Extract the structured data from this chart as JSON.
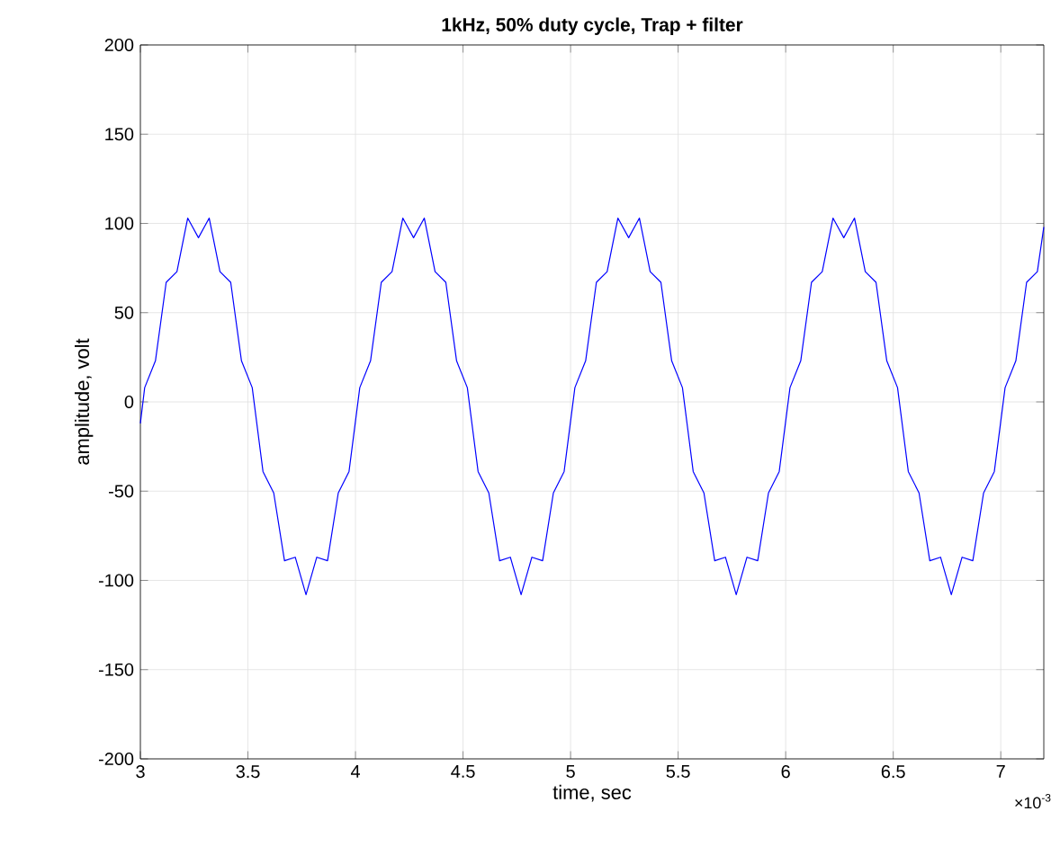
{
  "chart_data": {
    "type": "line",
    "title": "1kHz, 50% duty cycle, Trap + filter",
    "xlabel": "time, sec",
    "ylabel": "amplitude, volt",
    "annotations": [
      "×10$^{-3}$"
    ],
    "x": [
      3.0,
      3.02,
      3.07,
      3.12,
      3.17,
      3.22,
      3.27,
      3.32,
      3.37,
      3.42,
      3.47,
      3.52,
      3.57,
      3.62,
      3.67,
      3.72,
      3.77,
      3.82,
      3.87,
      3.92,
      3.97,
      4.02,
      4.07,
      4.12,
      4.17,
      4.22,
      4.27,
      4.32,
      4.37,
      4.42,
      4.47,
      4.52,
      4.57,
      4.62,
      4.67,
      4.72,
      4.77,
      4.82,
      4.87,
      4.92,
      4.97,
      5.02,
      5.07,
      5.12,
      5.17,
      5.22,
      5.27,
      5.32,
      5.37,
      5.42,
      5.47,
      5.52,
      5.57,
      5.62,
      5.67,
      5.72,
      5.77,
      5.82,
      5.87,
      5.92,
      5.97,
      6.02,
      6.07,
      6.12,
      6.17,
      6.22,
      6.27,
      6.32,
      6.37,
      6.42,
      6.47,
      6.52,
      6.57,
      6.62,
      6.67,
      6.72,
      6.77,
      6.82,
      6.87,
      6.92,
      6.97,
      7.02,
      7.07,
      7.12,
      7.17,
      7.2
    ],
    "values": [
      -12,
      8,
      23,
      67,
      73,
      103,
      92,
      103,
      73,
      67,
      23,
      8,
      -39,
      -51,
      -89,
      -87,
      -108,
      -87,
      -89,
      -51,
      -39,
      8,
      23,
      67,
      73,
      103,
      92,
      103,
      73,
      67,
      23,
      8,
      -39,
      -51,
      -89,
      -87,
      -108,
      -87,
      -89,
      -51,
      -39,
      8,
      23,
      67,
      73,
      103,
      92,
      103,
      73,
      67,
      23,
      8,
      -39,
      -51,
      -89,
      -87,
      -108,
      -87,
      -89,
      -51,
      -39,
      8,
      23,
      67,
      73,
      103,
      92,
      103,
      73,
      67,
      23,
      8,
      -39,
      -51,
      -89,
      -87,
      -108,
      -87,
      -89,
      -51,
      -39,
      8,
      23,
      67,
      73,
      98
    ],
    "color": "#0000ff",
    "xlim": [
      3,
      7.2
    ],
    "ylim": [
      -200,
      200
    ],
    "xticks": [
      3,
      3.5,
      4,
      4.5,
      5,
      5.5,
      6,
      6.5,
      7
    ],
    "yticks": [
      -200,
      -150,
      -100,
      -50,
      0,
      50,
      100,
      150,
      200
    ],
    "grid": true,
    "marker": "none",
    "line_style": "solid"
  }
}
